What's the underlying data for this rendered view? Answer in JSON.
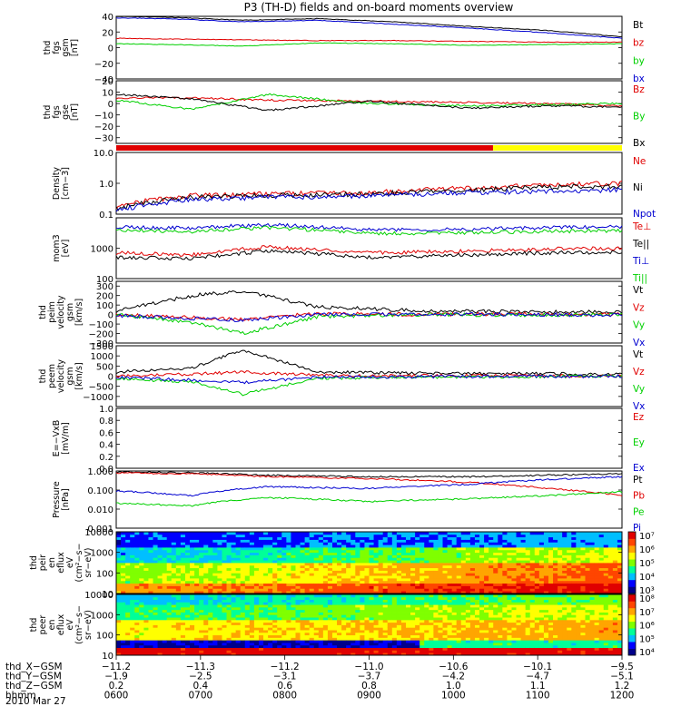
{
  "title": "P3 (TH-D) fields and on-board moments overview",
  "date": "2010 Mar 27",
  "colors": {
    "black": "#000000",
    "red": "#e00000",
    "green": "#00d000",
    "blue": "#0000d0",
    "yellow": "#ffff00"
  },
  "chart_data": [
    {
      "type": "line",
      "panel": "fgs-gsm",
      "ylabel": [
        "thd",
        "fgs",
        "gsm",
        "[nT]"
      ],
      "ylim": [
        -40,
        40
      ],
      "yticks": [
        "40",
        "20",
        "0",
        "−20",
        "−40"
      ],
      "ytick_values": [
        40,
        20,
        0,
        -20,
        -40
      ],
      "series": [
        {
          "name": "Bt",
          "color": "black",
          "x": [
            0,
            0.1,
            0.25,
            0.4,
            0.55,
            0.7,
            0.85,
            1
          ],
          "values": [
            40,
            39,
            35,
            37,
            33,
            27,
            22,
            14
          ]
        },
        {
          "name": "bz",
          "color": "red",
          "x": [
            0,
            0.1,
            0.25,
            0.4,
            0.55,
            0.7,
            0.85,
            1
          ],
          "values": [
            12,
            11,
            10,
            9,
            9,
            8,
            7,
            7
          ]
        },
        {
          "name": "by",
          "color": "green",
          "x": [
            0,
            0.1,
            0.25,
            0.4,
            0.55,
            0.7,
            0.85,
            1
          ],
          "values": [
            5,
            4,
            2,
            6,
            5,
            3,
            4,
            5
          ]
        },
        {
          "name": "bx",
          "color": "blue",
          "x": [
            0,
            0.1,
            0.25,
            0.4,
            0.55,
            0.7,
            0.85,
            1
          ],
          "values": [
            38,
            37,
            33,
            35,
            30,
            25,
            19,
            12
          ]
        }
      ]
    },
    {
      "type": "line",
      "panel": "fgs-gse",
      "ylabel": [
        "thd",
        "fgs",
        "gse",
        "[nT]"
      ],
      "ylim": [
        -35,
        20
      ],
      "yticks": [
        "20",
        "10",
        "0",
        "−10",
        "−20",
        "−30"
      ],
      "ytick_values": [
        20,
        10,
        0,
        -10,
        -20,
        -30
      ],
      "series": [
        {
          "name": "Bz",
          "color": "red",
          "x": [
            0,
            0.15,
            0.3,
            0.5,
            0.7,
            0.85,
            1
          ],
          "values": [
            5,
            5,
            3,
            2,
            1,
            0,
            -2
          ]
        },
        {
          "name": "By",
          "color": "green",
          "x": [
            0,
            0.15,
            0.3,
            0.5,
            0.7,
            0.85,
            1
          ],
          "values": [
            3,
            -5,
            8,
            0,
            -2,
            -1,
            0
          ]
        },
        {
          "name": "Bx",
          "color": "black",
          "x": [
            0,
            0.15,
            0.3,
            0.5,
            0.7,
            0.85,
            1
          ],
          "values": [
            8,
            4,
            -6,
            2,
            -4,
            -2,
            -3
          ]
        }
      ]
    },
    {
      "type": "line",
      "panel": "density",
      "ylabel": [
        "Density",
        "[cm−3]"
      ],
      "scale": "log",
      "ylim": [
        0.1,
        10
      ],
      "yticks": [
        "10.0",
        "1.0",
        "0.1"
      ],
      "ytick_values": [
        10,
        1,
        0.1
      ],
      "series": [
        {
          "name": "Ne",
          "color": "red",
          "x": [
            0,
            0.15,
            0.3,
            0.5,
            0.7,
            0.85,
            1
          ],
          "values": [
            0.18,
            0.4,
            0.45,
            0.5,
            0.7,
            0.9,
            1.0
          ]
        },
        {
          "name": "Ni",
          "color": "black",
          "x": [
            0,
            0.15,
            0.3,
            0.5,
            0.7,
            0.85,
            1
          ],
          "values": [
            0.15,
            0.35,
            0.4,
            0.45,
            0.6,
            0.75,
            0.8
          ]
        },
        {
          "name": "Npot",
          "color": "blue",
          "x": [
            0,
            0.15,
            0.3,
            0.5,
            0.7,
            0.85,
            1
          ],
          "values": [
            0.13,
            0.3,
            0.35,
            0.4,
            0.5,
            0.55,
            0.6
          ]
        }
      ]
    },
    {
      "type": "line",
      "panel": "temperature",
      "ylabel": [
        "mom3",
        "[eV]"
      ],
      "scale": "log",
      "ylim": [
        100,
        10000
      ],
      "yticks": [
        "1000",
        "100"
      ],
      "ytick_values": [
        1000,
        100
      ],
      "series": [
        {
          "name": "Te⊥",
          "color": "red",
          "x": [
            0,
            0.15,
            0.3,
            0.5,
            0.7,
            0.85,
            1
          ],
          "values": [
            700,
            600,
            1100,
            700,
            800,
            950,
            1000
          ]
        },
        {
          "name": "Te||",
          "color": "black",
          "x": [
            0,
            0.15,
            0.3,
            0.5,
            0.7,
            0.85,
            1
          ],
          "values": [
            500,
            450,
            800,
            500,
            600,
            700,
            750
          ]
        },
        {
          "name": "Ti⊥",
          "color": "blue",
          "x": [
            0,
            0.15,
            0.3,
            0.5,
            0.7,
            0.85,
            1
          ],
          "values": [
            5000,
            4500,
            6000,
            4000,
            4200,
            4800,
            5000
          ]
        },
        {
          "name": "Ti||",
          "color": "green",
          "x": [
            0,
            0.15,
            0.3,
            0.5,
            0.7,
            0.85,
            1
          ],
          "values": [
            4000,
            3500,
            4800,
            3000,
            3200,
            3600,
            3800
          ]
        }
      ]
    },
    {
      "type": "line",
      "panel": "peim-velocity",
      "ylabel": [
        "thd",
        "peim",
        "velocity",
        "gsm",
        "[km/s]"
      ],
      "ylim": [
        -300,
        350
      ],
      "yticks": [
        "300",
        "200",
        "100",
        "0",
        "−100",
        "−200",
        "−300"
      ],
      "ytick_values": [
        300,
        200,
        100,
        0,
        -100,
        -200,
        -300
      ],
      "series": [
        {
          "name": "Vt",
          "color": "black",
          "x": [
            0,
            0.15,
            0.25,
            0.4,
            0.6,
            0.8,
            1
          ],
          "values": [
            40,
            200,
            250,
            80,
            40,
            30,
            30
          ]
        },
        {
          "name": "Vz",
          "color": "red",
          "x": [
            0,
            0.15,
            0.25,
            0.4,
            0.6,
            0.8,
            1
          ],
          "values": [
            0,
            -30,
            -50,
            10,
            0,
            5,
            0
          ]
        },
        {
          "name": "Vy",
          "color": "green",
          "x": [
            0,
            0.15,
            0.25,
            0.4,
            0.6,
            0.8,
            1
          ],
          "values": [
            0,
            -80,
            -200,
            -20,
            0,
            -5,
            0
          ]
        },
        {
          "name": "Vx",
          "color": "blue",
          "x": [
            0,
            0.15,
            0.25,
            0.4,
            0.6,
            0.8,
            1
          ],
          "values": [
            -10,
            -40,
            -60,
            0,
            5,
            0,
            -5
          ]
        }
      ]
    },
    {
      "type": "line",
      "panel": "peem-velocity",
      "ylabel": [
        "thd",
        "peem",
        "velocity",
        "gsm",
        "[km/s]"
      ],
      "ylim": [
        -1500,
        1500
      ],
      "yticks": [
        "1500",
        "1000",
        "500",
        "0",
        "−500",
        "−1000"
      ],
      "ytick_values": [
        1500,
        1000,
        500,
        0,
        -500,
        -1000
      ],
      "series": [
        {
          "name": "Vt",
          "color": "black",
          "x": [
            0,
            0.15,
            0.25,
            0.4,
            0.6,
            0.8,
            1
          ],
          "values": [
            200,
            400,
            1300,
            200,
            150,
            120,
            100
          ]
        },
        {
          "name": "Vz",
          "color": "red",
          "x": [
            0,
            0.15,
            0.25,
            0.4,
            0.6,
            0.8,
            1
          ],
          "values": [
            0,
            100,
            200,
            50,
            20,
            30,
            0
          ]
        },
        {
          "name": "Vy",
          "color": "green",
          "x": [
            0,
            0.15,
            0.25,
            0.4,
            0.6,
            0.8,
            1
          ],
          "values": [
            -100,
            -300,
            -900,
            -100,
            -50,
            -30,
            0
          ]
        },
        {
          "name": "Vx",
          "color": "blue",
          "x": [
            0,
            0.15,
            0.25,
            0.4,
            0.6,
            0.8,
            1
          ],
          "values": [
            -50,
            -200,
            -300,
            -50,
            -20,
            -10,
            0
          ]
        }
      ]
    },
    {
      "type": "line",
      "panel": "e-field",
      "ylabel": [
        "E=−VxB",
        "[mV/m]"
      ],
      "ylim": [
        0,
        1
      ],
      "yticks": [
        "1.0",
        "0.8",
        "0.6",
        "0.4",
        "0.2",
        "0.0"
      ],
      "ytick_values": [
        1.0,
        0.8,
        0.6,
        0.4,
        0.2,
        0.0
      ],
      "series": [
        {
          "name": "Ez",
          "color": "red",
          "x": [],
          "values": []
        },
        {
          "name": "Ey",
          "color": "green",
          "x": [],
          "values": []
        },
        {
          "name": "Ex",
          "color": "blue",
          "x": [],
          "values": []
        }
      ]
    },
    {
      "type": "line",
      "panel": "pressure",
      "ylabel": [
        "Pressure",
        "[nPa]"
      ],
      "scale": "log",
      "ylim": [
        0.001,
        1.0
      ],
      "yticks": [
        "1.000",
        "0.100",
        "0.010",
        "0.001"
      ],
      "ytick_values": [
        1,
        0.1,
        0.01,
        0.001
      ],
      "series": [
        {
          "name": "Pt",
          "color": "black",
          "x": [
            0,
            0.15,
            0.3,
            0.5,
            0.7,
            0.85,
            1
          ],
          "values": [
            0.9,
            0.8,
            0.6,
            0.5,
            0.5,
            0.6,
            0.7
          ]
        },
        {
          "name": "Pb",
          "color": "red",
          "x": [
            0,
            0.15,
            0.3,
            0.5,
            0.7,
            0.85,
            1
          ],
          "values": [
            0.8,
            0.7,
            0.5,
            0.4,
            0.25,
            0.12,
            0.05
          ]
        },
        {
          "name": "Pe",
          "color": "green",
          "x": [
            0,
            0.15,
            0.3,
            0.5,
            0.7,
            0.85,
            1
          ],
          "values": [
            0.02,
            0.015,
            0.04,
            0.025,
            0.035,
            0.05,
            0.08
          ]
        },
        {
          "name": "Pi",
          "color": "blue",
          "x": [
            0,
            0.15,
            0.3,
            0.5,
            0.7,
            0.85,
            1
          ],
          "values": [
            0.09,
            0.05,
            0.15,
            0.12,
            0.2,
            0.35,
            0.5
          ]
        }
      ]
    },
    {
      "type": "heatmap",
      "panel": "peir-eflux",
      "ylabel": [
        "thd",
        "peir",
        "en",
        "eflux",
        "eV",
        "(cm²−s−",
        "sr−eV)"
      ],
      "scale": "log",
      "ylim": [
        10,
        10000
      ],
      "yticks": [
        "10000",
        "1000",
        "100",
        "10"
      ],
      "ytick_values": [
        10000,
        1000,
        100,
        10
      ],
      "colorbar": {
        "ticks": [
          "10⁷",
          "10⁶",
          "10⁵",
          "10⁴",
          "10³"
        ]
      }
    },
    {
      "type": "heatmap",
      "panel": "peer-eflux",
      "ylabel": [
        "thd",
        "peer",
        "en",
        "eflux",
        "eV",
        "(cm²−s−",
        "sr−eV)"
      ],
      "scale": "log",
      "ylim": [
        10,
        10000
      ],
      "yticks": [
        "10000",
        "1000",
        "100",
        "10"
      ],
      "ytick_values": [
        10000,
        1000,
        100,
        10
      ],
      "colorbar": {
        "ticks": [
          "10⁸",
          "10⁷",
          "10⁶",
          "10⁵",
          "10⁴"
        ]
      }
    }
  ],
  "x_axis": {
    "rows": [
      {
        "label": "thd_X−GSM",
        "values": [
          "−11.2",
          "−11.3",
          "−11.2",
          "−11.0",
          "−10.6",
          "−10.1",
          "−9.5"
        ]
      },
      {
        "label": "thd_Y−GSM",
        "values": [
          "−1.9",
          "−2.5",
          "−3.1",
          "−3.7",
          "−4.2",
          "−4.7",
          "−5.1"
        ]
      },
      {
        "label": "thd_Z−GSM",
        "values": [
          "0.2",
          "0.4",
          "0.6",
          "0.8",
          "1.0",
          "1.1",
          "1.2"
        ]
      },
      {
        "label": "hhmm",
        "values": [
          "0600",
          "0700",
          "0800",
          "0900",
          "1000",
          "1100",
          "1200"
        ]
      }
    ]
  }
}
